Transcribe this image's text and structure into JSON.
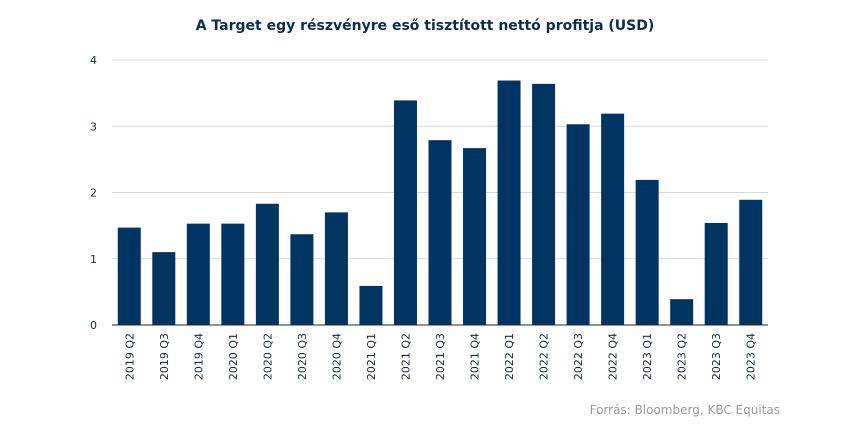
{
  "chart_data": {
    "type": "bar",
    "title": "A Target egy részvényre eső tisztított nettó profitja (USD)",
    "categories": [
      "2019 Q2",
      "2019 Q3",
      "2019 Q4",
      "2020 Q1",
      "2020 Q2",
      "2020 Q3",
      "2020 Q4",
      "2021 Q1",
      "2021 Q2",
      "2021 Q3",
      "2021 Q4",
      "2022 Q1",
      "2022 Q2",
      "2022 Q3",
      "2022 Q4",
      "2023 Q1",
      "2023 Q2",
      "2023 Q3",
      "2023 Q4"
    ],
    "values": [
      1.47,
      1.1,
      1.53,
      1.53,
      1.83,
      1.37,
      1.7,
      0.59,
      3.39,
      2.79,
      2.67,
      3.69,
      3.64,
      3.03,
      3.19,
      2.19,
      0.39,
      1.54,
      1.89
    ],
    "ylim": [
      0,
      4
    ],
    "yticks": [
      "0",
      "1",
      "2",
      "3",
      "4"
    ],
    "xlabel": "",
    "ylabel": "",
    "grid": true,
    "bar_color": "#003462",
    "grid_color": "#d9d9d9",
    "axis_color": "#1b2a3a"
  },
  "source": "Forrás: Bloomberg,  KBC Equitas"
}
